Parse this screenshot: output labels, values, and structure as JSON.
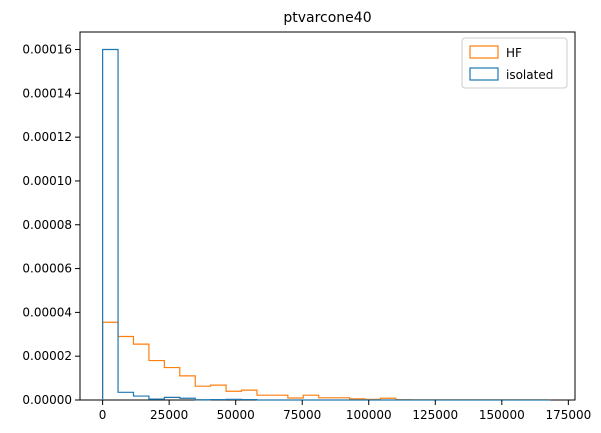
{
  "chart_data": {
    "type": "histogram",
    "title": "ptvarcone40",
    "xlabel": "",
    "ylabel": "",
    "xlim": [
      -8500,
      177500
    ],
    "ylim": [
      0,
      0.000168
    ],
    "x_ticks": [
      {
        "value": 0,
        "label": "0"
      },
      {
        "value": 25000,
        "label": "25000"
      },
      {
        "value": 50000,
        "label": "50000"
      },
      {
        "value": 75000,
        "label": "75000"
      },
      {
        "value": 100000,
        "label": "100000"
      },
      {
        "value": 125000,
        "label": "125000"
      },
      {
        "value": 150000,
        "label": "150000"
      },
      {
        "value": 175000,
        "label": "175000"
      }
    ],
    "y_ticks": [
      {
        "value": 0,
        "label": "0.00000"
      },
      {
        "value": 2e-05,
        "label": "0.00002"
      },
      {
        "value": 4e-05,
        "label": "0.00004"
      },
      {
        "value": 6e-05,
        "label": "0.00006"
      },
      {
        "value": 8e-05,
        "label": "0.00008"
      },
      {
        "value": 0.0001,
        "label": "0.00010"
      },
      {
        "value": 0.00012,
        "label": "0.00012"
      },
      {
        "value": 0.00014,
        "label": "0.00014"
      },
      {
        "value": 0.00016,
        "label": "0.00016"
      }
    ],
    "bin_edges": [
      0,
      5800,
      11600,
      17400,
      23200,
      29000,
      34800,
      40600,
      46400,
      52200,
      58000,
      63800,
      69600,
      75400,
      81200,
      87000,
      92800,
      98600,
      104400,
      110200,
      116000,
      121800,
      127600,
      133400,
      139200,
      145000,
      150800,
      156600,
      162400,
      168200
    ],
    "series": [
      {
        "name": "HF",
        "color": "#ff7f0e",
        "values": [
          3.55e-05,
          2.9e-05,
          2.55e-05,
          1.8e-05,
          1.48e-05,
          1.1e-05,
          6.3e-06,
          6.8e-06,
          4e-06,
          4.5e-06,
          2.2e-06,
          2.2e-06,
          9e-07,
          2.2e-06,
          1e-06,
          1e-06,
          5e-07,
          3e-07,
          8e-07,
          2e-07,
          1e-07,
          1e-07,
          1e-07,
          1e-07,
          1e-07,
          1e-07,
          1e-07,
          1e-07,
          1e-07
        ]
      },
      {
        "name": "isolated",
        "color": "#1f77b4",
        "values": [
          0.00016,
          3.5e-06,
          1.8e-06,
          4e-07,
          1.2e-06,
          8e-07,
          1e-07,
          2e-07,
          3e-07,
          2e-07,
          0.0,
          0.0,
          0.0,
          0.0,
          0.0,
          0.0,
          0.0,
          0.0,
          0.0,
          0.0,
          0.0,
          0.0,
          0.0,
          0.0,
          0.0,
          0.0,
          0.0,
          0.0,
          0.0
        ]
      }
    ],
    "legend_position": "top-right",
    "grid": false
  }
}
